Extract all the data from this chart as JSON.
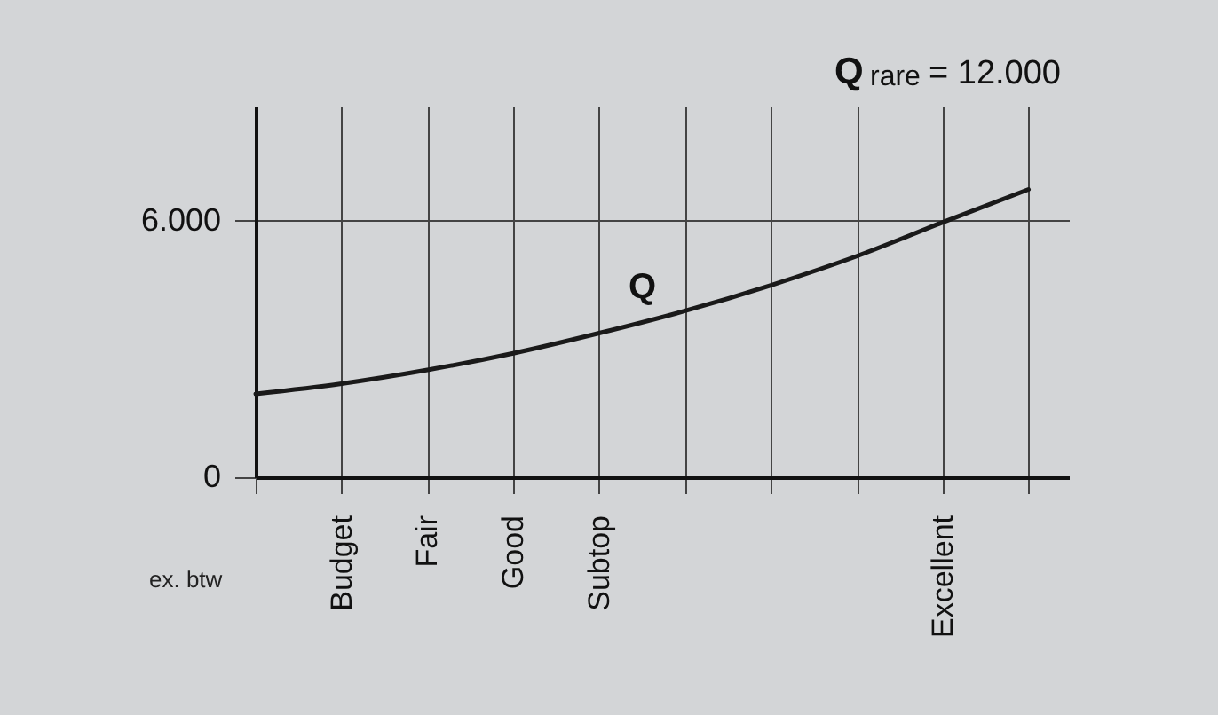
{
  "chart_data": {
    "type": "line",
    "categories": [
      null,
      "Budget",
      "Fair",
      "Good",
      "Subtop",
      null,
      null,
      null,
      "Excellent",
      null
    ],
    "series": [
      {
        "name": "Q",
        "color": "#1a1a1a",
        "values": [
          1950,
          2190,
          2510,
          2900,
          3370,
          3890,
          4490,
          5170,
          5960,
          6730
        ]
      }
    ],
    "ylim": [
      0,
      8670
    ],
    "yticks": [
      0,
      {
        "value": 6000,
        "label": "6.000"
      }
    ],
    "grid": true,
    "marker": "none",
    "line_style": "solid",
    "annotations": [
      "Q$_{rare}$ = 12.000",
      "ex. btw"
    ]
  }
}
